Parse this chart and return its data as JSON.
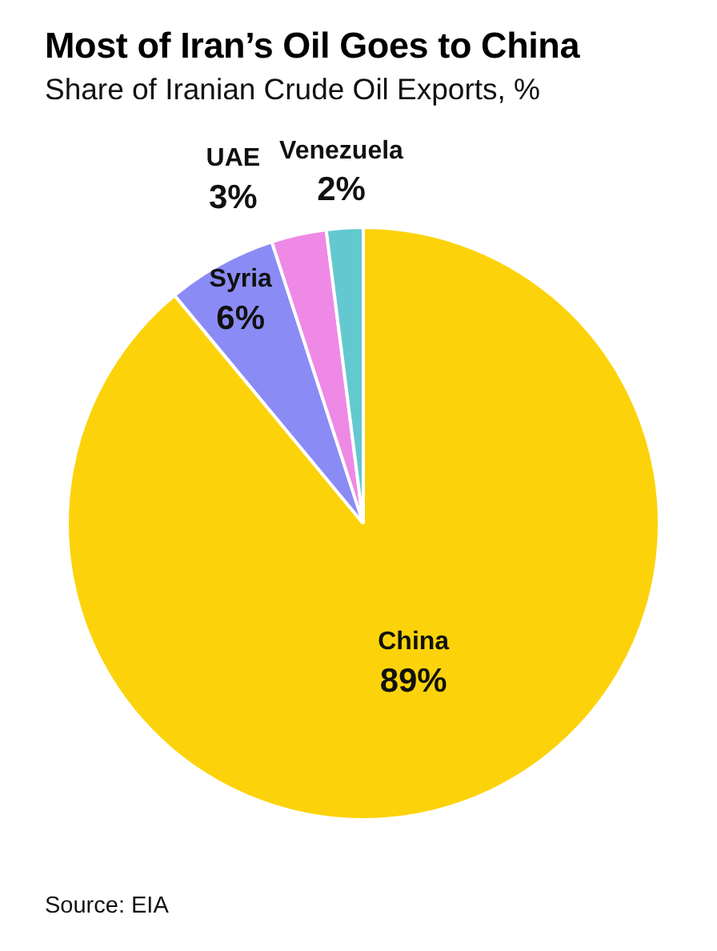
{
  "chart_data": {
    "type": "pie",
    "title": "Most of Iran’s Oil Goes to China",
    "subtitle": "Share of Iranian Crude Oil Exports, %",
    "categories": [
      "China",
      "Syria",
      "UAE",
      "Venezuela"
    ],
    "values": [
      89,
      6,
      3,
      2
    ],
    "colors": [
      "#fcd30a",
      "#8b8bf5",
      "#ee89e6",
      "#64c8d0"
    ],
    "value_labels": [
      "89%",
      "6%",
      "3%",
      "2%"
    ],
    "annotations": [
      "Source: EIA"
    ]
  }
}
